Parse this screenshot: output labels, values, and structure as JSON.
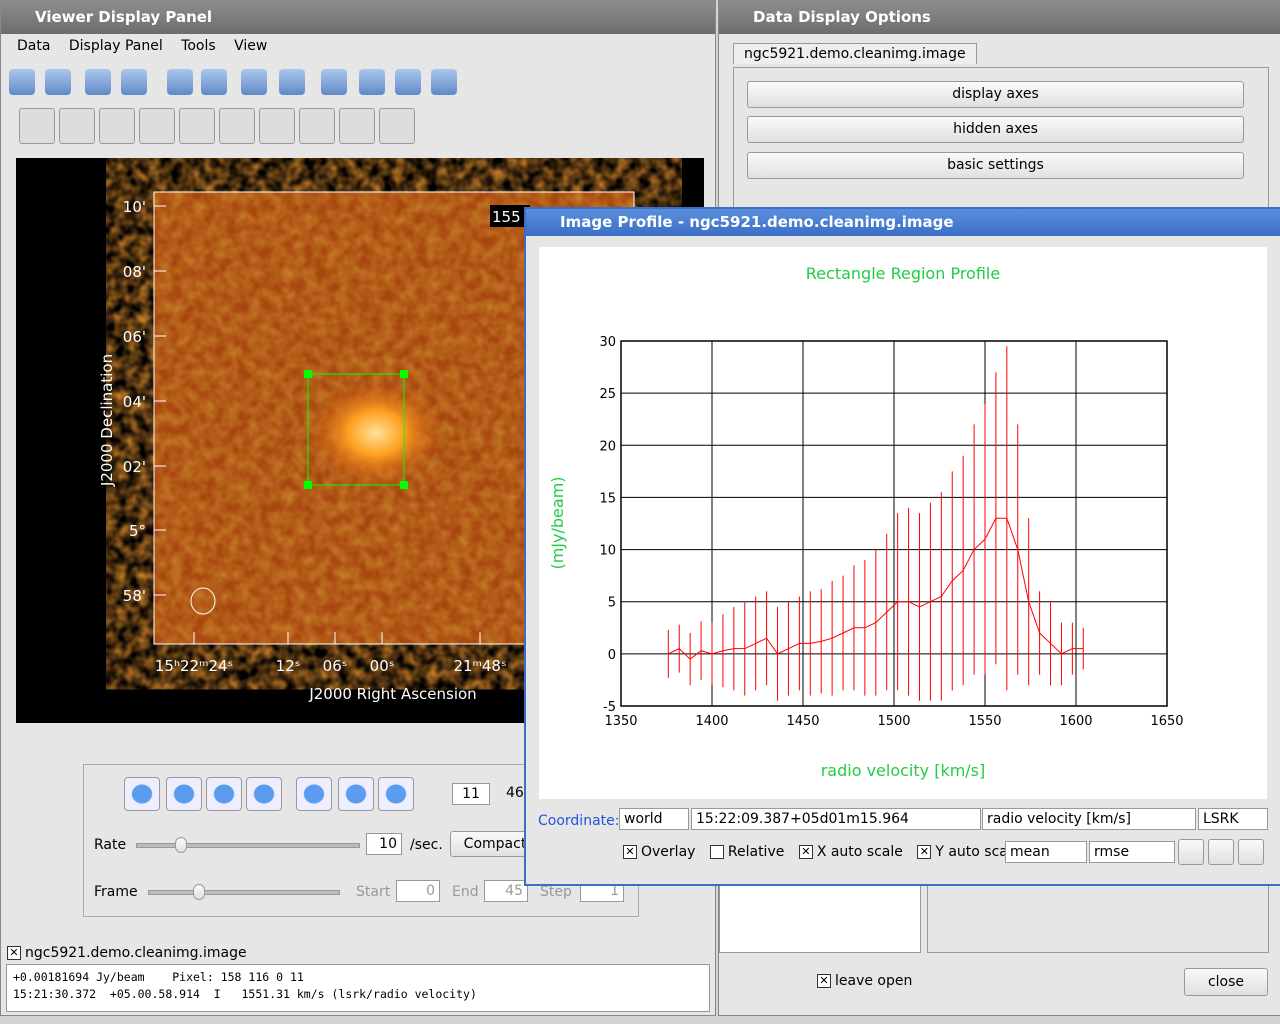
{
  "viewer": {
    "title": "Viewer Display Panel",
    "menu": [
      "Data",
      "Display Panel",
      "Tools",
      "View"
    ],
    "image": {
      "dec_label": "J2000 Declination",
      "ra_label": "J2000 Right Ascension",
      "dec_ticks": [
        "10'",
        "08'",
        "06'",
        "04'",
        "02'",
        "5°",
        "58'"
      ],
      "ra_ticks": [
        "15ʰ22ᵐ24ˢ",
        "12ˢ",
        "06ˢ",
        "00ˢ",
        "21ᵐ48ˢ"
      ],
      "corner_text": "155"
    },
    "animator": {
      "frame": "11",
      "frames": "46",
      "rate_label": "Rate",
      "rate": "10",
      "rate_unit": "/sec.",
      "mode": "Compact",
      "frame_label": "Frame",
      "start_label": "Start",
      "start": "0",
      "end_label": "End",
      "end": "45",
      "step_label": "Step",
      "step": "1"
    },
    "tracking": {
      "image": "ngc5921.demo.cleanimg.image",
      "line1": "+0.00181694 Jy/beam    Pixel: 158 116 0 11",
      "line2": "15:21:30.372  +05.00.58.914  I   1551.31 km/s (lsrk/radio velocity)"
    }
  },
  "options": {
    "title": "Data Display Options",
    "tab": "ngc5921.demo.cleanimg.image",
    "buttons": [
      "display axes",
      "hidden axes",
      "basic settings"
    ],
    "leave_open": "leave open",
    "close": "close"
  },
  "profile": {
    "window_title": "Image Profile - ngc5921.demo.cleanimg.image",
    "chart": {
      "type": "line",
      "title": "Rectangle Region Profile",
      "x_label": "radio velocity [km/s]",
      "y_label": "(mJy/beam)",
      "color": "#ff0000",
      "grid": true,
      "x": [
        1376,
        1382,
        1388,
        1394,
        1400,
        1406,
        1412,
        1418,
        1424,
        1430,
        1436,
        1442,
        1448,
        1454,
        1460,
        1466,
        1472,
        1478,
        1484,
        1490,
        1496,
        1502,
        1508,
        1514,
        1520,
        1526,
        1532,
        1538,
        1544,
        1550,
        1556,
        1562,
        1568,
        1574,
        1580,
        1586,
        1592,
        1598,
        1604
      ],
      "values": [
        0,
        0.5,
        -0.5,
        0.3,
        0,
        0.3,
        0.5,
        0.5,
        1,
        1.5,
        0,
        0.5,
        1,
        1,
        1.2,
        1.5,
        2,
        2.5,
        2.5,
        3,
        4,
        5,
        5,
        4.5,
        5,
        5.5,
        7,
        8,
        10,
        11,
        13,
        13,
        10,
        5,
        2,
        1,
        0,
        0.5,
        0.5
      ],
      "errors": [
        2.3,
        2.3,
        2.5,
        2.8,
        3,
        3.5,
        4,
        4.5,
        4.5,
        4.5,
        4.5,
        4.5,
        4.5,
        5,
        5,
        5.5,
        5.5,
        6,
        6.5,
        7,
        7.5,
        8.5,
        9,
        9,
        9.5,
        10,
        10.5,
        11,
        12,
        13,
        14,
        16.5,
        12,
        8,
        4,
        4,
        3,
        2.5,
        2
      ],
      "xlim": [
        1350,
        1650
      ],
      "ylim": [
        -5,
        30
      ],
      "xticks": [
        1350,
        1400,
        1450,
        1500,
        1550,
        1600,
        1650
      ],
      "yticks": [
        -5,
        0,
        5,
        10,
        15,
        20,
        25,
        30
      ]
    },
    "controls": {
      "coordinate_label": "Coordinate:",
      "coordinate": "world",
      "position": "15:22:09.387+05d01m15.964",
      "axis": "radio velocity [km/s]",
      "frame": "LSRK",
      "overlay": "Overlay",
      "relative": "Relative",
      "x_auto": "X auto scale",
      "y_auto": "Y auto scale",
      "statistic": "mean",
      "error": "rmse"
    }
  }
}
